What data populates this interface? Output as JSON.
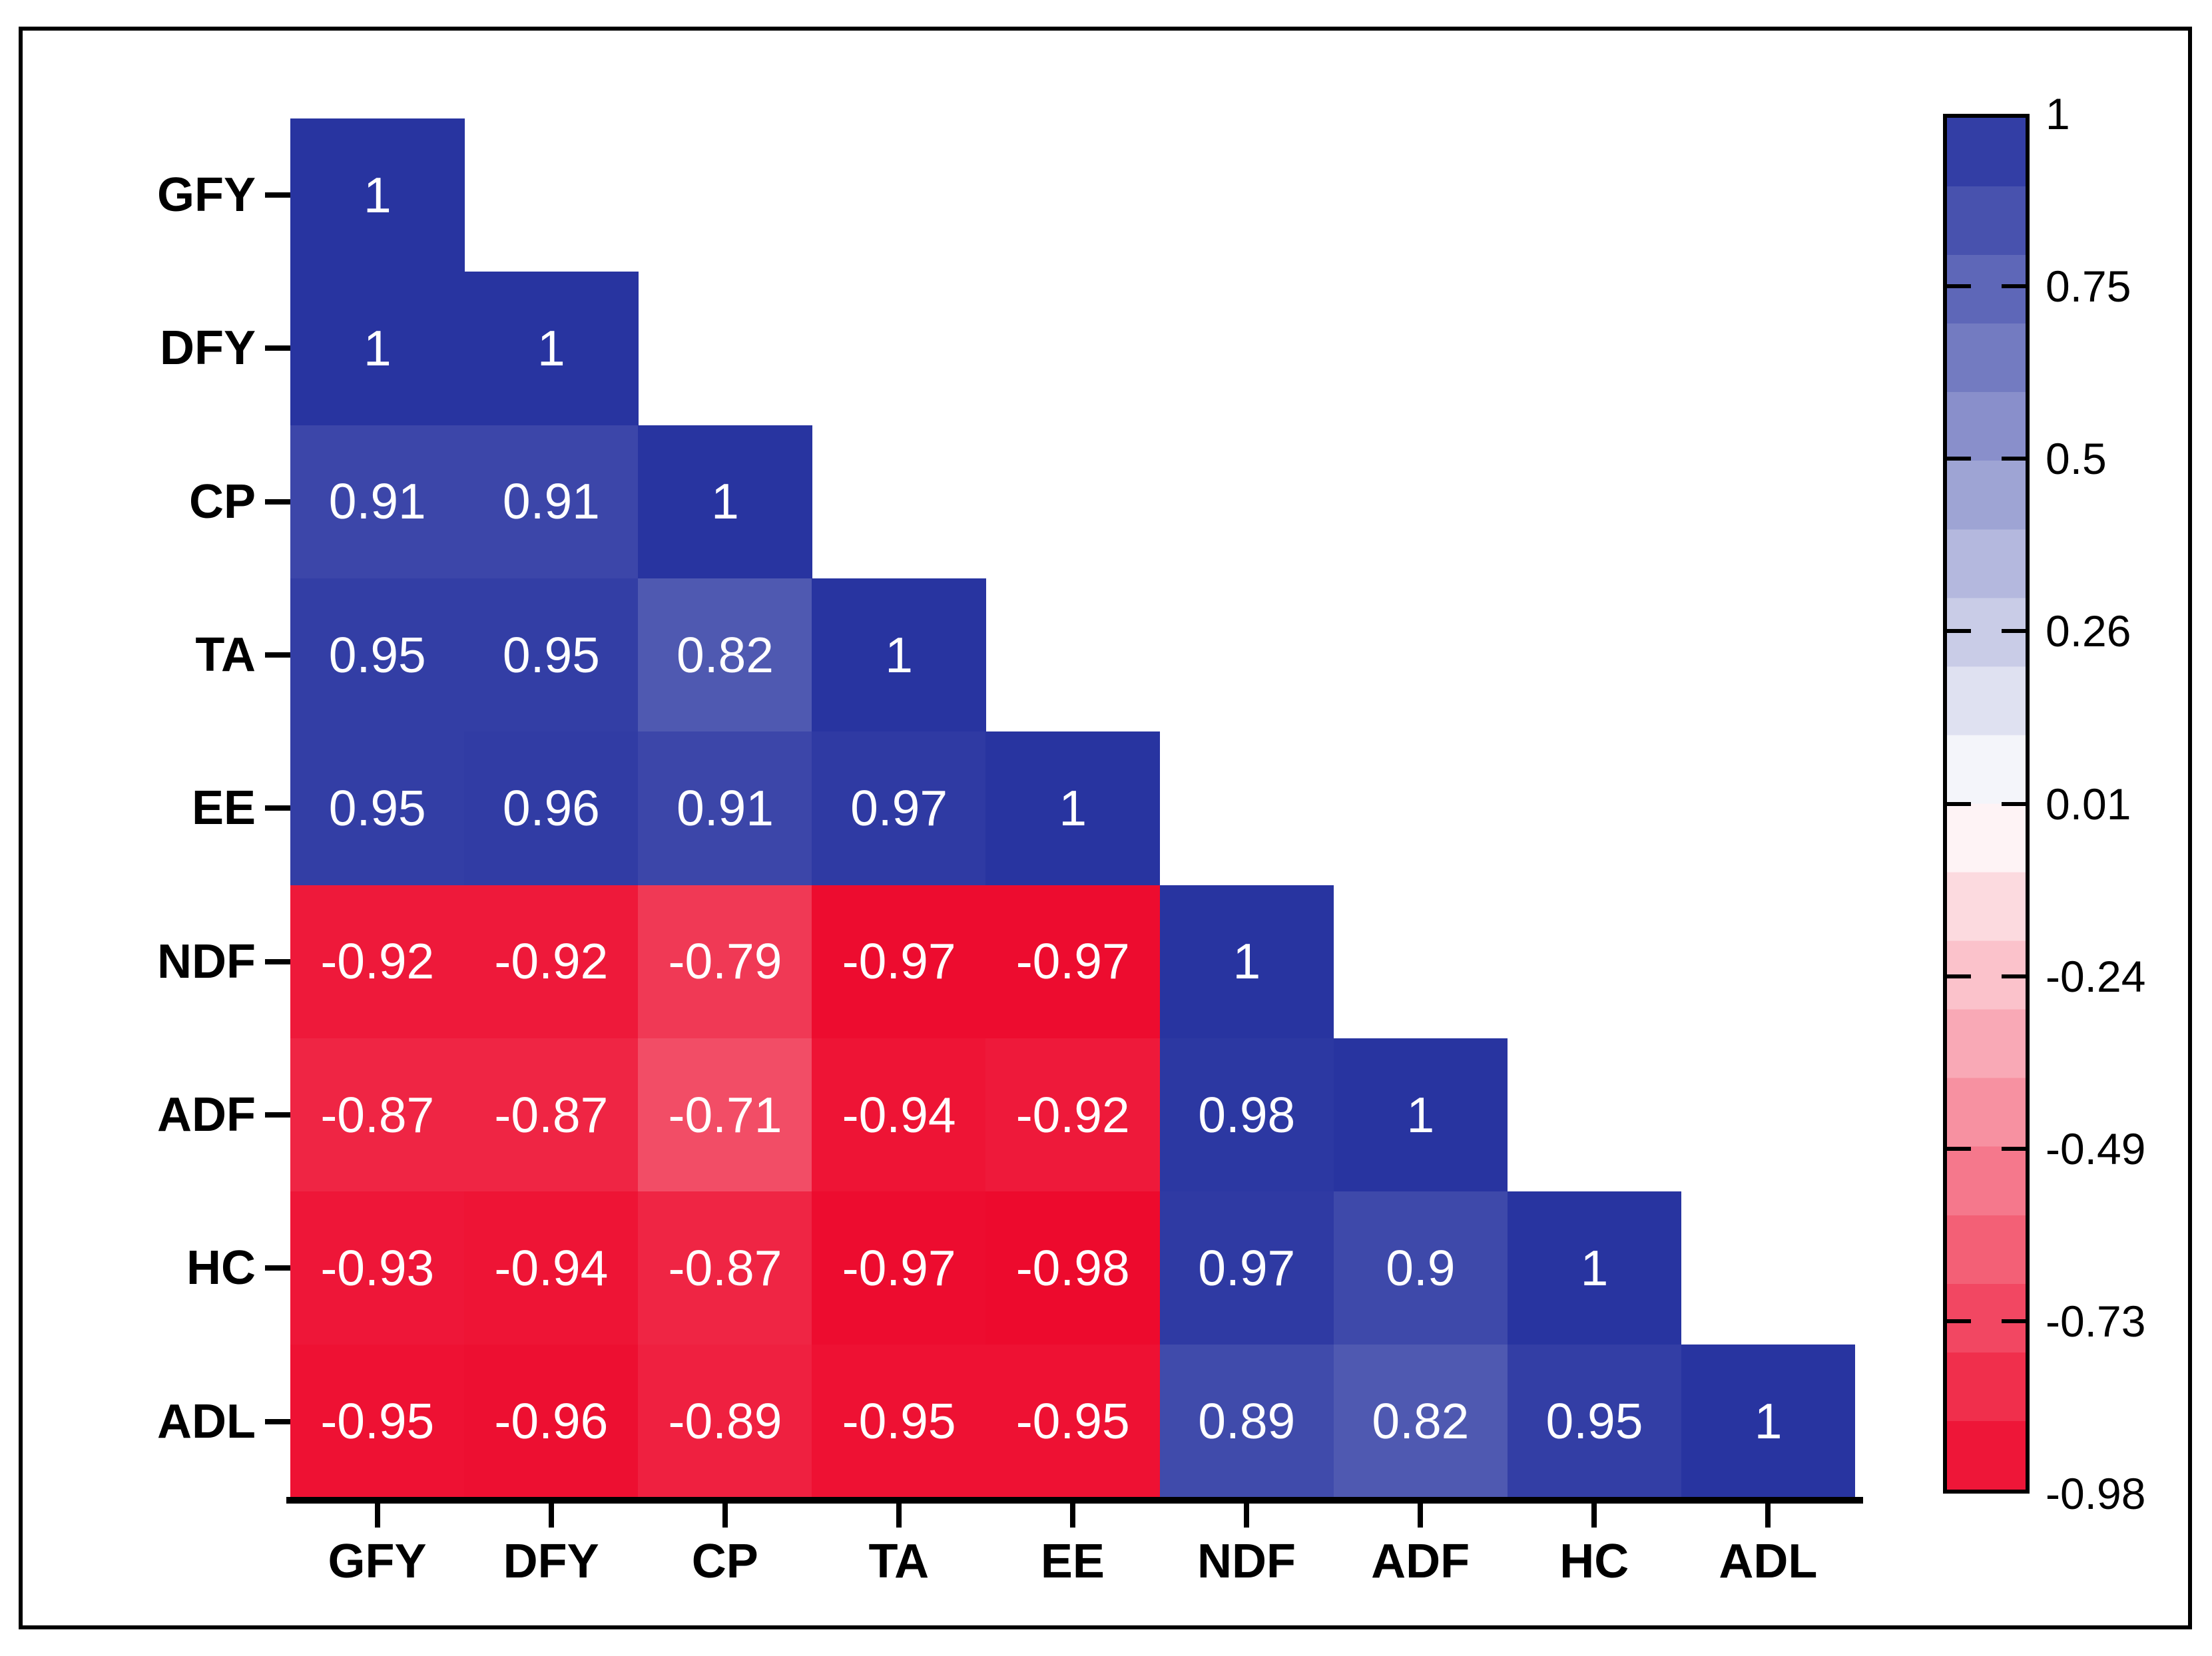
{
  "figure": {
    "background": "#FFFFFF",
    "frame_color": "#000000"
  },
  "chart_data": {
    "type": "heatmap",
    "subtype": "correlation-matrix-lower-triangle",
    "title": "",
    "xlabel": "",
    "ylabel": "",
    "categories": [
      "GFY",
      "DFY",
      "CP",
      "TA",
      "EE",
      "NDF",
      "ADF",
      "HC",
      "ADL"
    ],
    "x_tick_labels": [
      "GFY",
      "DFY",
      "CP",
      "TA",
      "EE",
      "NDF",
      "ADF",
      "HC",
      "ADL"
    ],
    "y_tick_labels": [
      "GFY",
      "DFY",
      "CP",
      "TA",
      "EE",
      "NDF",
      "ADF",
      "HC",
      "ADL"
    ],
    "matrix": [
      [
        1
      ],
      [
        1,
        1
      ],
      [
        0.91,
        0.91,
        1
      ],
      [
        0.95,
        0.95,
        0.82,
        1
      ],
      [
        0.95,
        0.96,
        0.91,
        0.97,
        1
      ],
      [
        -0.92,
        -0.92,
        -0.79,
        -0.97,
        -0.97,
        1
      ],
      [
        -0.87,
        -0.87,
        -0.71,
        -0.94,
        -0.92,
        0.98,
        1
      ],
      [
        -0.93,
        -0.94,
        -0.87,
        -0.97,
        -0.98,
        0.97,
        0.9,
        1
      ],
      [
        -0.95,
        -0.96,
        -0.89,
        -0.95,
        -0.95,
        0.89,
        0.82,
        0.95,
        1
      ]
    ],
    "cell_labels": [
      [
        "1"
      ],
      [
        "1",
        "1"
      ],
      [
        "0.91",
        "0.91",
        "1"
      ],
      [
        "0.95",
        "0.95",
        "0.82",
        "1"
      ],
      [
        "0.95",
        "0.96",
        "0.91",
        "0.97",
        "1"
      ],
      [
        "-0.92",
        "-0.92",
        "-0.79",
        "-0.97",
        "-0.97",
        "1"
      ],
      [
        "-0.87",
        "-0.87",
        "-0.71",
        "-0.94",
        "-0.92",
        "0.98",
        "1"
      ],
      [
        "-0.93",
        "-0.94",
        "-0.87",
        "-0.97",
        "-0.98",
        "0.97",
        "0.9",
        "1"
      ],
      [
        "-0.95",
        "-0.96",
        "-0.89",
        "-0.95",
        "-0.95",
        "0.89",
        "0.82",
        "0.95",
        "1"
      ]
    ],
    "value_text_color": "#FFFFFF",
    "grid": false,
    "legend_position": "right",
    "colorbar": {
      "position": "right",
      "tick_labels": [
        "1",
        "0.75",
        "0.5",
        "0.26",
        "0.01",
        "-0.24",
        "-0.49",
        "-0.73",
        "-0.98"
      ],
      "max": 1,
      "mid": 0.01,
      "min": -0.98,
      "color_max": "#2834A0",
      "color_mid": "#FFFFFF",
      "color_min": "#ED0A2D",
      "steps": 20
    }
  }
}
